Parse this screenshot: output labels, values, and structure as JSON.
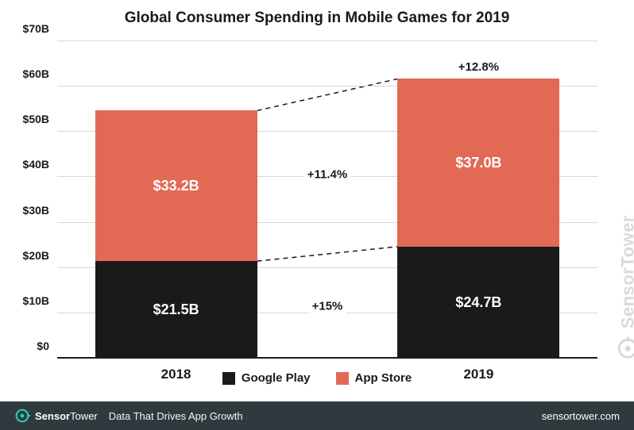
{
  "title": {
    "text": "Global Consumer Spending in Mobile Games for 2019",
    "fontsize": 19
  },
  "chart": {
    "type": "stacked-bar",
    "background_color": "#ffffff",
    "grid_color": "#d7d7d7",
    "axis_color": "#1a1a1a",
    "categories": [
      "2018",
      "2019"
    ],
    "series": [
      {
        "name": "Google Play",
        "color": "#1a1a1a",
        "values": [
          21.5,
          24.7
        ],
        "labels": [
          "$21.5B",
          "$24.7B"
        ]
      },
      {
        "name": "App Store",
        "color": "#e26a55",
        "values": [
          33.2,
          37.0
        ],
        "labels": [
          "$33.2B",
          "$37.0B"
        ]
      }
    ],
    "y": {
      "min": 0,
      "max": 70,
      "step": 10,
      "tick_labels": [
        "$0",
        "$10B",
        "$20B",
        "$30B",
        "$40B",
        "$50B",
        "$60B",
        "$70B"
      ],
      "tick_fontsize": 14
    },
    "bar_width_pct": 30,
    "bar_positions_pct": [
      22,
      78
    ],
    "value_label_fontsize": 18,
    "xcat_fontsize": 17,
    "annotations": {
      "top": {
        "text": "+12.8%",
        "fontsize": 15
      },
      "upper": {
        "text": "+11.4%",
        "fontsize": 15
      },
      "lower": {
        "text": "+15%",
        "fontsize": 15
      }
    }
  },
  "legend": {
    "items": [
      {
        "label": "Google Play",
        "color": "#1a1a1a"
      },
      {
        "label": "App Store",
        "color": "#e26a55"
      }
    ],
    "fontsize": 15
  },
  "watermark": {
    "text": "SensorTower",
    "color": "#d9d9d9",
    "fontsize": 22
  },
  "footer": {
    "background_color": "#2f3a3f",
    "brand_accent": "#2ad1b5",
    "brand_bold": "Sensor",
    "brand_light": "Tower",
    "tagline": "Data That Drives App Growth",
    "site": "sensortower.com",
    "fontsize": 13
  }
}
